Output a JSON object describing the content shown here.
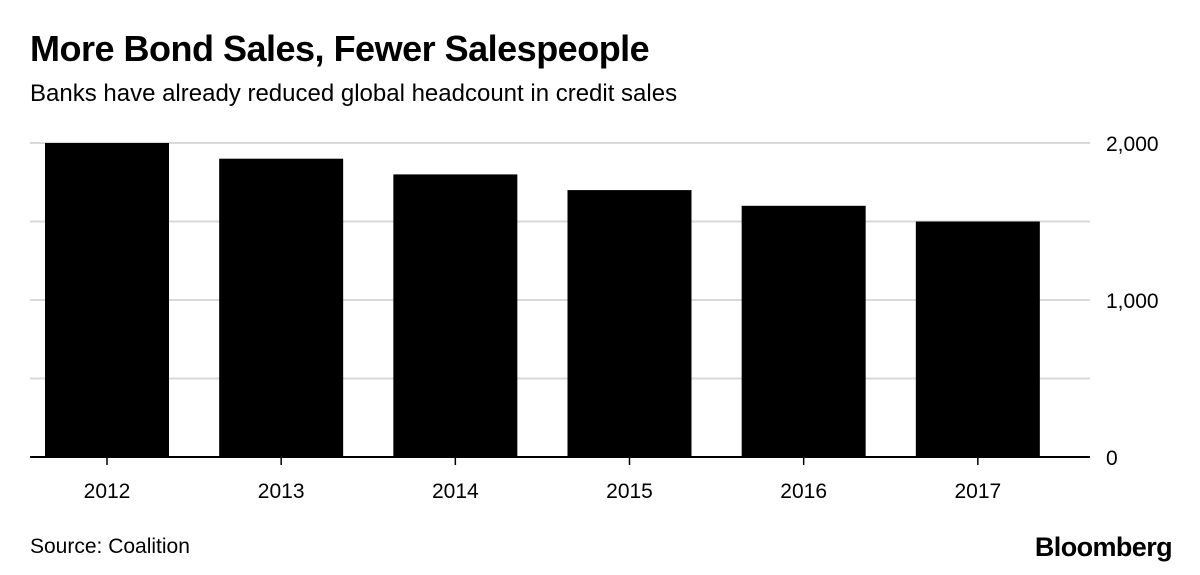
{
  "header": {
    "title": "More Bond Sales, Fewer Salespeople",
    "subtitle": "Banks have already reduced global headcount in credit sales"
  },
  "footer": {
    "source": "Source: Coalition",
    "brand": "Bloomberg"
  },
  "colors": {
    "bar": "#000000",
    "grid": "#d9d9d9",
    "axis": "#000000",
    "text": "#000000"
  },
  "chart_data": {
    "type": "bar",
    "title": "More Bond Sales, Fewer Salespeople",
    "subtitle": "Banks have already reduced global headcount in credit sales",
    "xlabel": "",
    "ylabel": "",
    "categories": [
      "2012",
      "2013",
      "2014",
      "2015",
      "2016",
      "2017"
    ],
    "values": [
      2000,
      1900,
      1800,
      1700,
      1600,
      1500
    ],
    "ylim": [
      0,
      2000
    ],
    "y_ticks": [
      0,
      500,
      1000,
      1500,
      2000
    ],
    "y_tick_labels": [
      "0",
      "",
      "1,000",
      "",
      "2,000"
    ],
    "y_axis_position": "right",
    "grid": true,
    "legend": "none"
  }
}
